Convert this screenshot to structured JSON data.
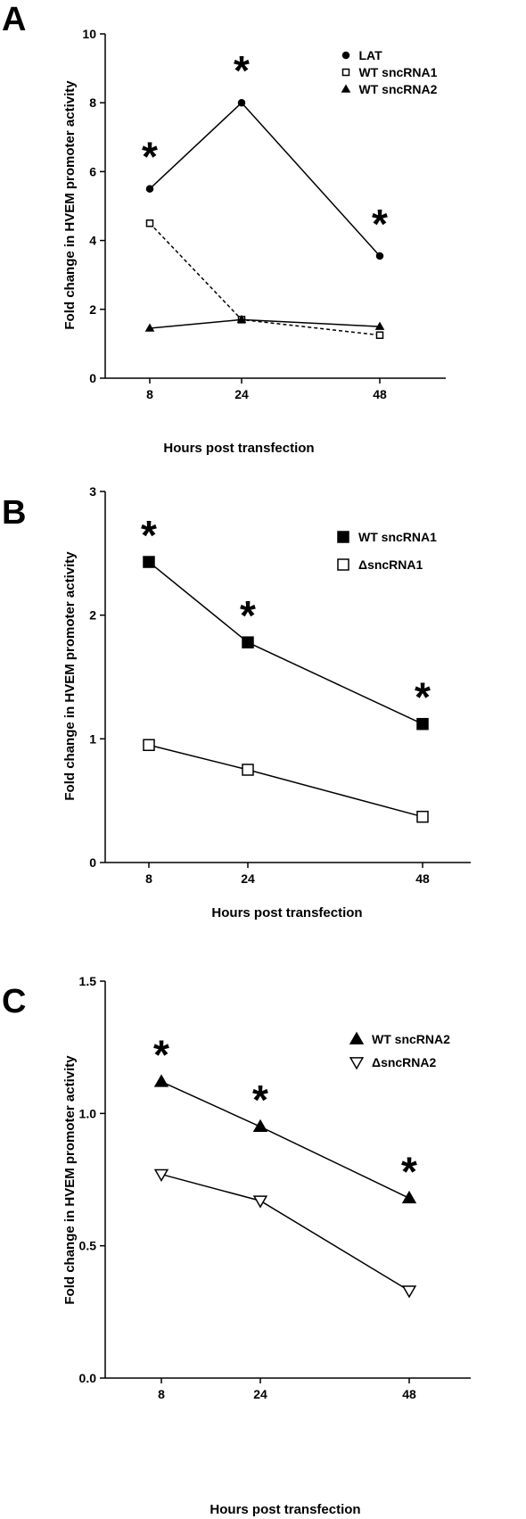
{
  "colors": {
    "ink": "#000000",
    "background": "#ffffff"
  },
  "chart_data": [
    {
      "panel": "A",
      "type": "line",
      "xlabel": "Hours post transfection",
      "ylabel": "Fold change in HVEM promoter activity",
      "categories": [
        "8",
        "24",
        "48"
      ],
      "ylim": [
        0,
        10
      ],
      "yticks": [
        "0",
        "2",
        "4",
        "6",
        "8",
        "10"
      ],
      "legend_position": "top-right",
      "grid": false,
      "significance_marker": "*",
      "series": [
        {
          "name": "LAT",
          "values": [
            5.5,
            8.0,
            3.55
          ],
          "marker": "circle-filled",
          "line": "solid",
          "significant": [
            true,
            true,
            true
          ]
        },
        {
          "name": "WT sncRNA1",
          "values": [
            4.5,
            1.7,
            1.25
          ],
          "marker": "square-open",
          "line": "dashed",
          "significant": [
            false,
            false,
            false
          ]
        },
        {
          "name": "WT sncRNA2",
          "values": [
            1.45,
            1.7,
            1.5
          ],
          "marker": "triangle-filled",
          "line": "solid",
          "significant": [
            false,
            false,
            false
          ]
        }
      ]
    },
    {
      "panel": "B",
      "type": "line",
      "xlabel": "Hours post transfection",
      "ylabel": "Fold change in HVEM promoter activity",
      "categories": [
        "8",
        "24",
        "48"
      ],
      "ylim": [
        0,
        3
      ],
      "yticks": [
        "0",
        "1",
        "2",
        "3"
      ],
      "legend_position": "top-right",
      "grid": false,
      "significance_marker": "*",
      "series": [
        {
          "name": "WT sncRNA1",
          "values": [
            2.43,
            1.78,
            1.12
          ],
          "marker": "square-filled",
          "line": "solid",
          "significant": [
            true,
            true,
            true
          ]
        },
        {
          "name": "ΔsncRNA1",
          "values": [
            0.95,
            0.75,
            0.37
          ],
          "marker": "square-open",
          "line": "solid",
          "significant": [
            false,
            false,
            false
          ]
        }
      ]
    },
    {
      "panel": "C",
      "type": "line",
      "xlabel": "Hours post transfection",
      "ylabel": "Fold change in HVEM promoter activity",
      "categories": [
        "8",
        "24",
        "48"
      ],
      "ylim": [
        0,
        1.5
      ],
      "yticks": [
        "0.0",
        "0.5",
        "1.0",
        "1.5"
      ],
      "legend_position": "top-right",
      "grid": false,
      "significance_marker": "*",
      "series": [
        {
          "name": "WT sncRNA2",
          "values": [
            1.12,
            0.95,
            0.68
          ],
          "marker": "triangle-filled",
          "line": "solid",
          "significant": [
            true,
            true,
            true
          ]
        },
        {
          "name": "ΔsncRNA2",
          "values": [
            0.77,
            0.67,
            0.33
          ],
          "marker": "triangle-down-open",
          "line": "solid",
          "significant": [
            false,
            false,
            false
          ]
        }
      ]
    }
  ]
}
